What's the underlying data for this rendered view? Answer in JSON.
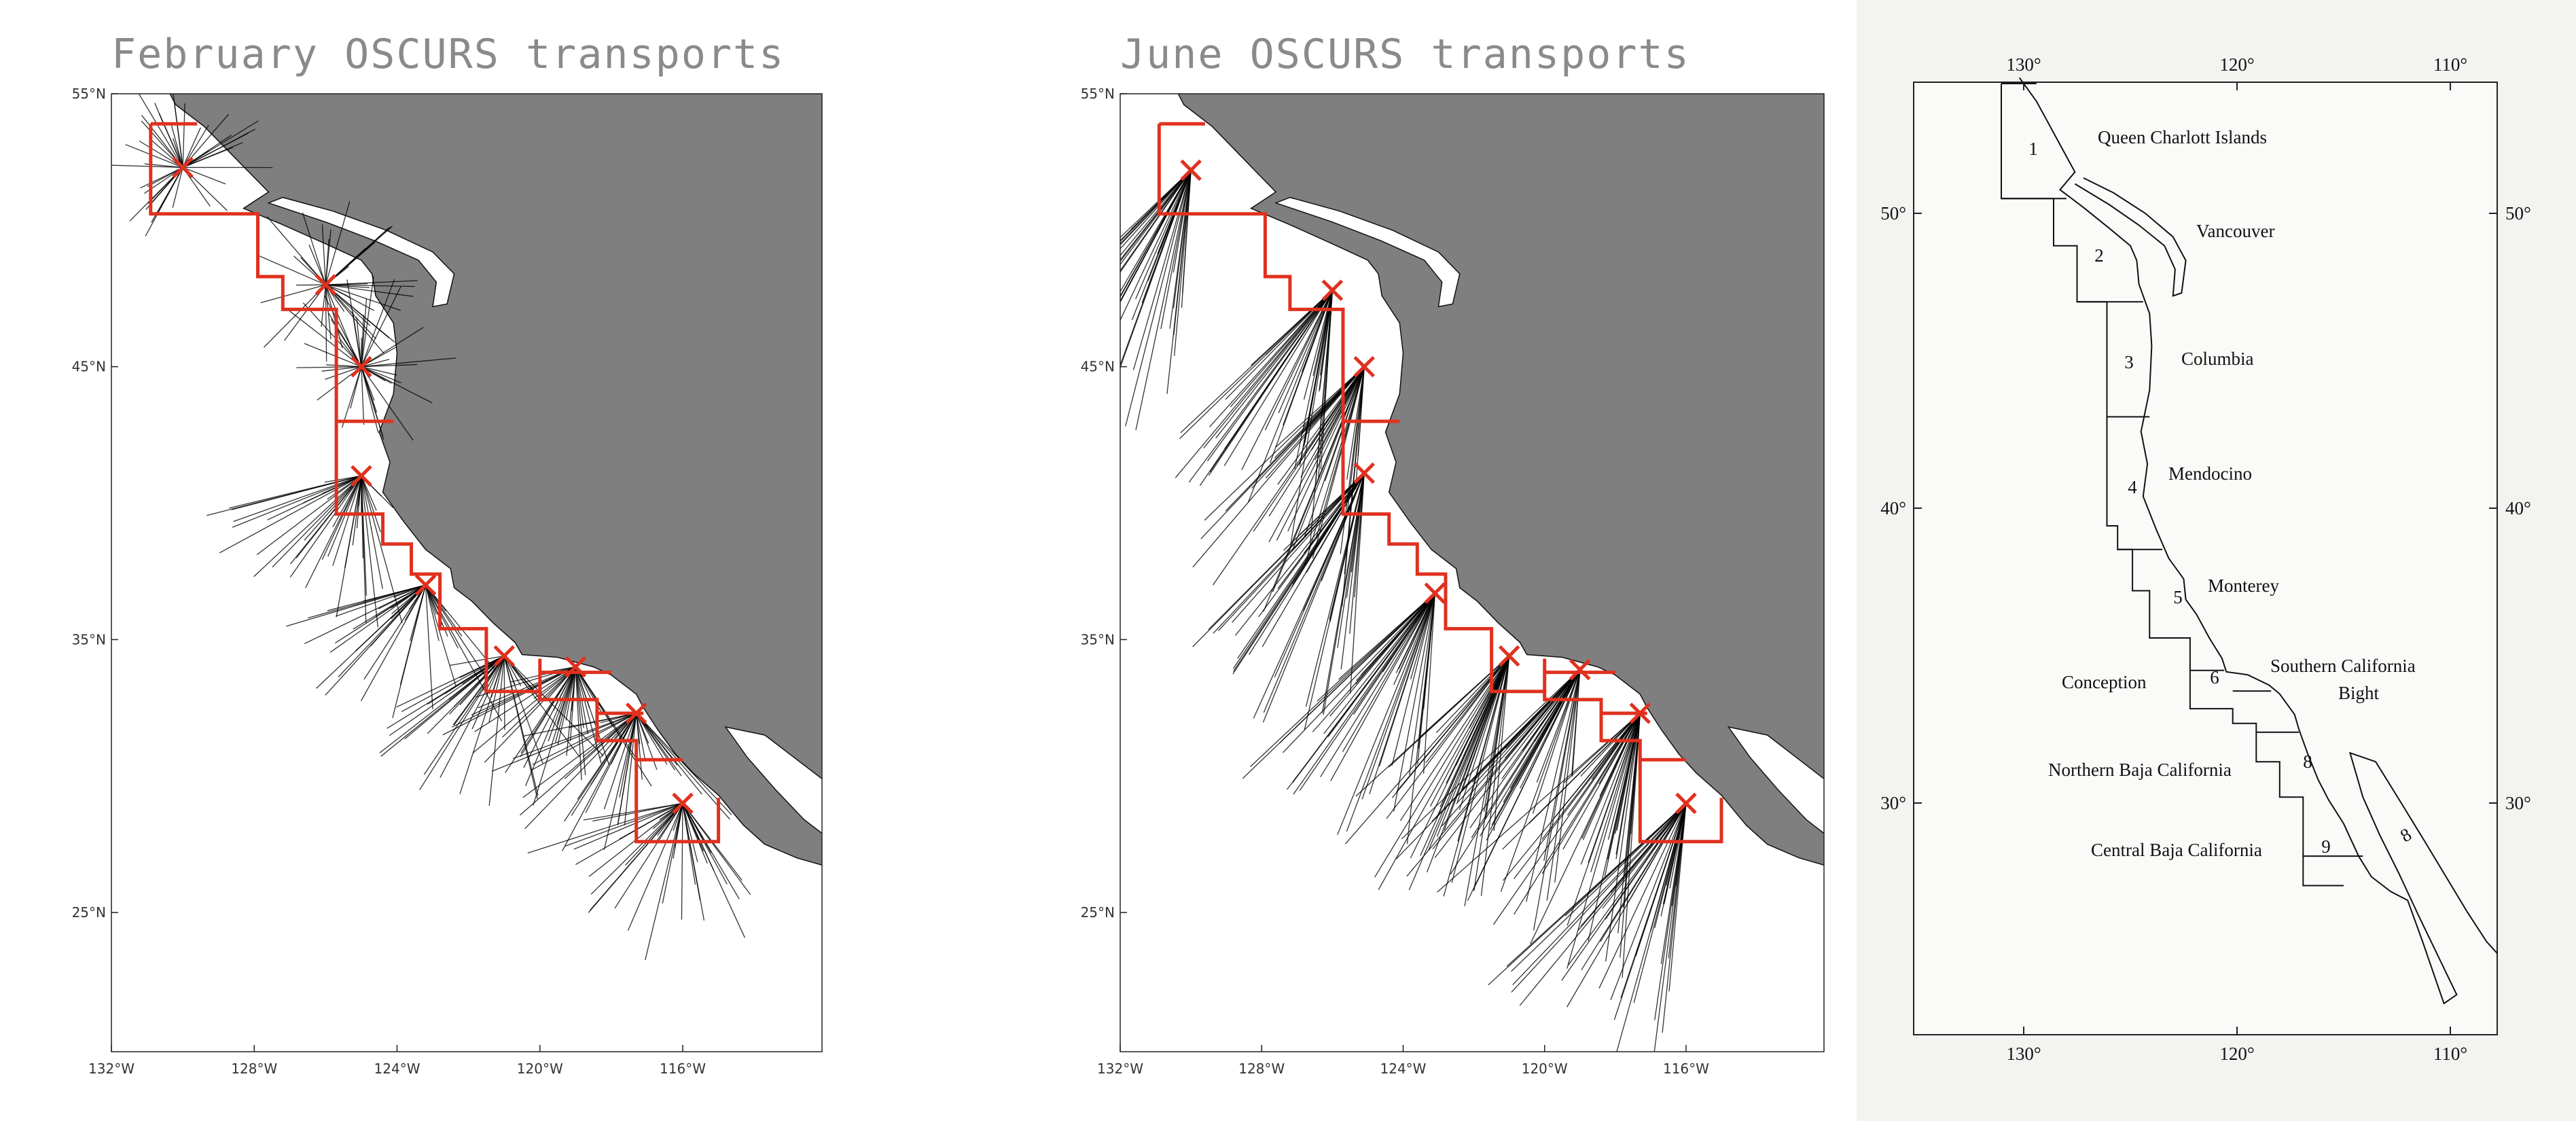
{
  "panels": [
    {
      "title": "February OSCURS transports",
      "lat_ticks": [
        {
          "value": 55,
          "label": "55°N"
        },
        {
          "value": 45,
          "label": "45°N"
        },
        {
          "value": 35,
          "label": "35°N"
        },
        {
          "value": 25,
          "label": "25°N"
        }
      ],
      "lon_ticks": [
        {
          "value": -132,
          "label": "132°W"
        },
        {
          "value": -128,
          "label": "128°W"
        },
        {
          "value": -124,
          "label": "124°W"
        },
        {
          "value": -120,
          "label": "120°W"
        },
        {
          "value": -116,
          "label": "116°W"
        }
      ]
    },
    {
      "title": "June OSCURS transports",
      "lat_ticks": [
        {
          "value": 55,
          "label": "55°N"
        },
        {
          "value": 45,
          "label": "45°N"
        },
        {
          "value": 35,
          "label": "35°N"
        },
        {
          "value": 25,
          "label": "25°N"
        }
      ],
      "lon_ticks": [
        {
          "value": -132,
          "label": "132°W"
        },
        {
          "value": -128,
          "label": "128°W"
        },
        {
          "value": -124,
          "label": "124°W"
        },
        {
          "value": -120,
          "label": "120°W"
        },
        {
          "value": -116,
          "label": "116°W"
        }
      ]
    }
  ],
  "region_map": {
    "lon_ticks": [
      {
        "value": 130,
        "label": "130°"
      },
      {
        "value": 120,
        "label": "120°"
      },
      {
        "value": 110,
        "label": "110°"
      }
    ],
    "lat_ticks": [
      {
        "value": 50,
        "label": "50°"
      },
      {
        "value": 40,
        "label": "40°"
      },
      {
        "value": 30,
        "label": "30°"
      }
    ],
    "regions": [
      {
        "number": "1",
        "name": "Queen Charlott Islands"
      },
      {
        "number": "2",
        "name": "Vancouver"
      },
      {
        "number": "3",
        "name": "Columbia"
      },
      {
        "number": "4",
        "name": "Mendocino"
      },
      {
        "number": "5",
        "name": "Monterey"
      },
      {
        "number": "6",
        "name": "Conception"
      },
      {
        "name_lines": [
          "Southern California",
          "Bight"
        ]
      },
      {
        "number": "8",
        "name": "Northern Baja California"
      },
      {
        "number": "9",
        "name": "Central Baja California"
      }
    ],
    "gulf_label": "8"
  }
}
